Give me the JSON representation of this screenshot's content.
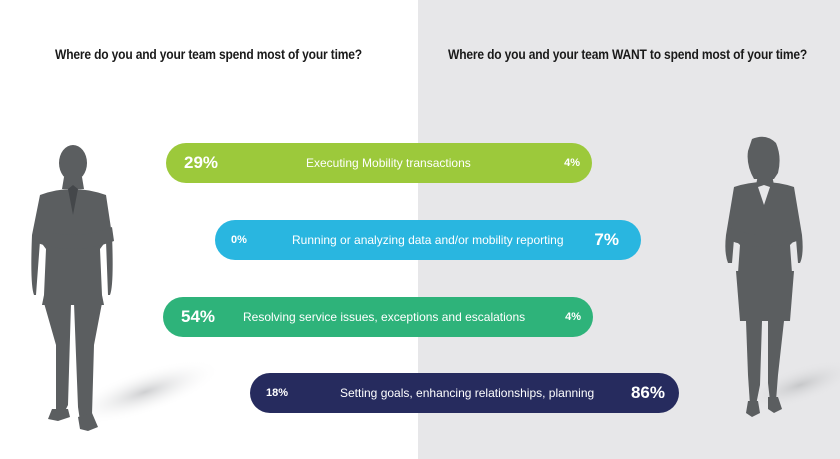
{
  "colors": {
    "right_panel": "#e7e7e9",
    "silhouette": "#5b5e60",
    "series_colors": [
      "#9cc93b",
      "#29b6e0",
      "#2eb37a",
      "#262b5e"
    ]
  },
  "questions": {
    "left": "Where do you and your team spend most of your time?",
    "right": "Where do you and your team WANT to spend most of your time?"
  },
  "icons": {
    "left_figure": "businessman-silhouette-icon",
    "right_figure": "businesswoman-silhouette-icon"
  },
  "chart_data": {
    "type": "bar",
    "categories": [
      "Executing Mobility transactions",
      "Running or analyzing data and/or mobility reporting",
      "Resolving service issues, exceptions and escalations",
      "Setting goals, enhancing relationships, planning"
    ],
    "series": [
      {
        "values": [
          29,
          0,
          54,
          18
        ],
        "labels": [
          "29%",
          "0%",
          "54%",
          "18%"
        ]
      },
      {
        "values": [
          4,
          7,
          4,
          86
        ],
        "labels": [
          "4%",
          "7%",
          "4%",
          "86%"
        ]
      }
    ],
    "emphasis": [
      [
        "left",
        "right",
        "left",
        "right"
      ]
    ],
    "grid": false
  }
}
